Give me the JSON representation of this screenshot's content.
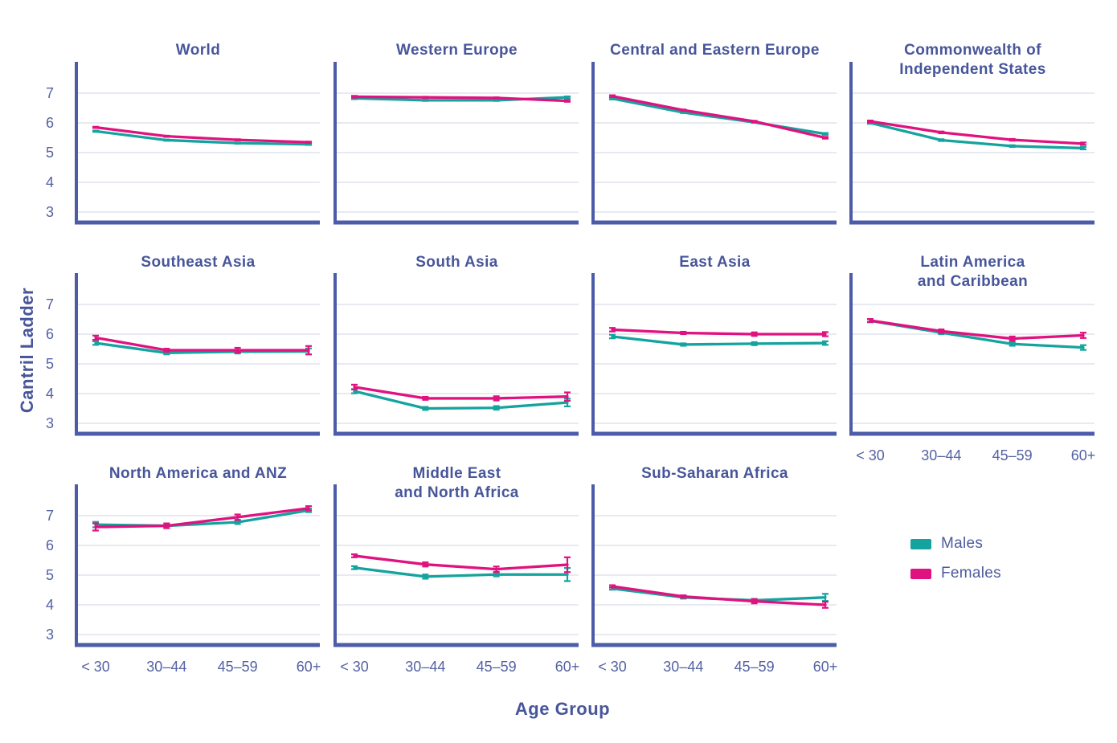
{
  "figure": {
    "xlabel": "Age Group",
    "ylabel": "Cantril Ladder"
  },
  "colors": {
    "males": "#14A39E",
    "females": "#E0127F",
    "axis": "#4C5CA8",
    "grid": "#D9DDEB",
    "text": "#4D5B9E"
  },
  "legend": {
    "items": [
      {
        "label": "Males",
        "color_key": "males"
      },
      {
        "label": "Females",
        "color_key": "females"
      }
    ]
  },
  "chart_data": {
    "type": "line",
    "title": "",
    "xlabel": "Age Group",
    "ylabel": "Cantril Ladder",
    "categories": [
      "< 30",
      "30–44",
      "45–59",
      "60+"
    ],
    "yticks": [
      3,
      4,
      5,
      6,
      7
    ],
    "ylim": [
      2.65,
      7.75
    ],
    "grid": true,
    "legend_position": "bottom-right",
    "series_names": [
      "Males",
      "Females"
    ],
    "panels": [
      {
        "title": [
          "World"
        ],
        "row": 0,
        "col": 0,
        "show_y_ticks": true,
        "show_x_ticks": false,
        "males": {
          "values": [
            5.72,
            5.42,
            5.32,
            5.28
          ],
          "err": [
            0.02,
            0.02,
            0.02,
            0.02
          ]
        },
        "females": {
          "values": [
            5.85,
            5.55,
            5.43,
            5.35
          ],
          "err": [
            0.02,
            0.02,
            0.02,
            0.02
          ]
        }
      },
      {
        "title": [
          "Western Europe"
        ],
        "row": 0,
        "col": 1,
        "show_y_ticks": false,
        "show_x_ticks": false,
        "males": {
          "values": [
            6.83,
            6.76,
            6.76,
            6.86
          ],
          "err": [
            0.03,
            0.02,
            0.02,
            0.03
          ]
        },
        "females": {
          "values": [
            6.88,
            6.86,
            6.84,
            6.74
          ],
          "err": [
            0.03,
            0.02,
            0.02,
            0.03
          ]
        }
      },
      {
        "title": [
          "Central and Eastern Europe"
        ],
        "row": 0,
        "col": 2,
        "show_y_ticks": false,
        "show_x_ticks": false,
        "males": {
          "values": [
            6.82,
            6.35,
            6.02,
            5.63
          ],
          "err": [
            0.03,
            0.02,
            0.02,
            0.03
          ]
        },
        "females": {
          "values": [
            6.9,
            6.43,
            6.05,
            5.5
          ],
          "err": [
            0.03,
            0.02,
            0.02,
            0.03
          ]
        }
      },
      {
        "title": [
          "Commonwealth of",
          "Independent States"
        ],
        "row": 0,
        "col": 3,
        "show_y_ticks": false,
        "show_x_ticks": false,
        "males": {
          "values": [
            6.0,
            5.42,
            5.22,
            5.15
          ],
          "err": [
            0.03,
            0.03,
            0.03,
            0.04
          ]
        },
        "females": {
          "values": [
            6.05,
            5.68,
            5.43,
            5.3
          ],
          "err": [
            0.03,
            0.03,
            0.03,
            0.04
          ]
        }
      },
      {
        "title": [
          "Southeast Asia"
        ],
        "row": 1,
        "col": 0,
        "show_y_ticks": true,
        "show_x_ticks": false,
        "males": {
          "values": [
            5.7,
            5.37,
            5.41,
            5.42
          ],
          "err": [
            0.06,
            0.05,
            0.06,
            0.1
          ]
        },
        "females": {
          "values": [
            5.88,
            5.46,
            5.46,
            5.46
          ],
          "err": [
            0.07,
            0.05,
            0.08,
            0.14
          ]
        }
      },
      {
        "title": [
          "South Asia"
        ],
        "row": 1,
        "col": 1,
        "show_y_ticks": false,
        "show_x_ticks": false,
        "males": {
          "values": [
            4.08,
            3.5,
            3.52,
            3.7
          ],
          "err": [
            0.07,
            0.05,
            0.06,
            0.13
          ]
        },
        "females": {
          "values": [
            4.22,
            3.84,
            3.84,
            3.9
          ],
          "err": [
            0.08,
            0.05,
            0.07,
            0.14
          ]
        }
      },
      {
        "title": [
          "East Asia"
        ],
        "row": 1,
        "col": 2,
        "show_y_ticks": false,
        "show_x_ticks": false,
        "males": {
          "values": [
            5.92,
            5.65,
            5.68,
            5.7
          ],
          "err": [
            0.06,
            0.04,
            0.05,
            0.06
          ]
        },
        "females": {
          "values": [
            6.15,
            6.04,
            6.0,
            6.0
          ],
          "err": [
            0.06,
            0.04,
            0.06,
            0.07
          ]
        }
      },
      {
        "title": [
          "Latin America",
          "and Caribbean"
        ],
        "row": 1,
        "col": 3,
        "show_y_ticks": false,
        "show_x_ticks": true,
        "males": {
          "values": [
            6.45,
            6.05,
            5.67,
            5.55
          ],
          "err": [
            0.05,
            0.05,
            0.06,
            0.08
          ]
        },
        "females": {
          "values": [
            6.46,
            6.1,
            5.85,
            5.96
          ],
          "err": [
            0.05,
            0.06,
            0.07,
            0.09
          ]
        }
      },
      {
        "title": [
          "North America and ANZ"
        ],
        "row": 2,
        "col": 0,
        "show_y_ticks": true,
        "show_x_ticks": true,
        "males": {
          "values": [
            6.7,
            6.66,
            6.78,
            7.18
          ],
          "err": [
            0.09,
            0.06,
            0.06,
            0.06
          ]
        },
        "females": {
          "values": [
            6.62,
            6.66,
            6.95,
            7.25
          ],
          "err": [
            0.12,
            0.08,
            0.09,
            0.07
          ]
        }
      },
      {
        "title": [
          "Middle East",
          "and North Africa"
        ],
        "row": 2,
        "col": 1,
        "show_y_ticks": false,
        "show_x_ticks": true,
        "males": {
          "values": [
            5.25,
            4.95,
            5.02,
            5.02
          ],
          "err": [
            0.05,
            0.07,
            0.06,
            0.22
          ]
        },
        "females": {
          "values": [
            5.65,
            5.36,
            5.2,
            5.35
          ],
          "err": [
            0.05,
            0.07,
            0.09,
            0.25
          ]
        }
      },
      {
        "title": [
          "Sub-Saharan Africa"
        ],
        "row": 2,
        "col": 2,
        "show_y_ticks": false,
        "show_x_ticks": true,
        "males": {
          "values": [
            4.55,
            4.25,
            4.15,
            4.25
          ],
          "err": [
            0.04,
            0.04,
            0.05,
            0.12
          ]
        },
        "females": {
          "values": [
            4.62,
            4.28,
            4.12,
            4.0
          ],
          "err": [
            0.04,
            0.04,
            0.07,
            0.1
          ]
        }
      }
    ]
  }
}
